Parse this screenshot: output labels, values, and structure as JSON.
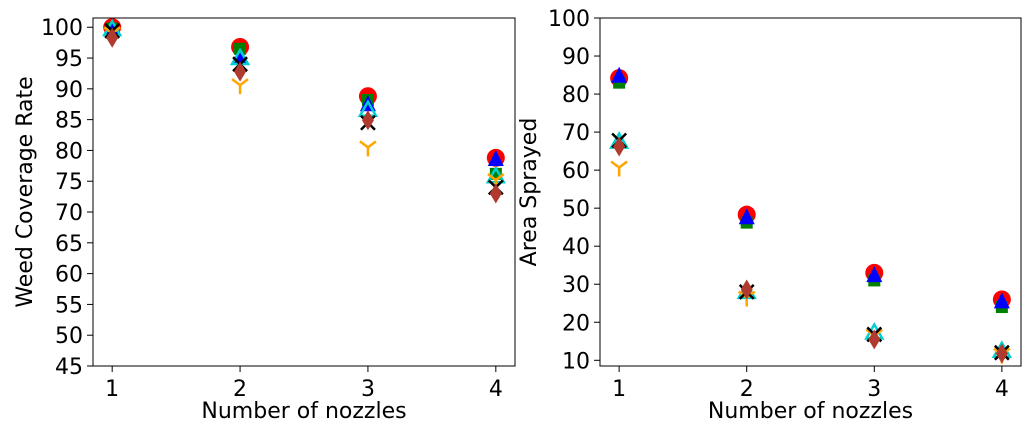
{
  "chart_data": [
    {
      "type": "scatter",
      "xlabel": "Number of nozzles",
      "ylabel": "Weed Coverage Rate",
      "x_ticks": [
        1,
        2,
        3,
        4
      ],
      "y_ticks": [
        45,
        50,
        55,
        60,
        65,
        70,
        75,
        80,
        85,
        90,
        95,
        100
      ],
      "xlim": [
        0.85,
        4.15
      ],
      "ylim": [
        45,
        101.5
      ],
      "grid": false,
      "series": [
        {
          "marker": "circle",
          "color": "#ff0000",
          "x": [
            1,
            2,
            3,
            4
          ],
          "y": [
            100,
            96.8,
            88.8,
            78.8
          ]
        },
        {
          "marker": "square",
          "color": "#008000",
          "x": [
            1,
            2,
            3,
            4
          ],
          "y": [
            99.8,
            96.5,
            88.2,
            76.2
          ]
        },
        {
          "marker": "triangle",
          "color": "#0000ff",
          "x": [
            1,
            2,
            3,
            4
          ],
          "y": [
            99.9,
            95.2,
            87.5,
            78.6
          ]
        },
        {
          "marker": "triangle-open",
          "color": "#00ced1",
          "x": [
            1,
            2,
            3,
            4
          ],
          "y": [
            99.7,
            95.0,
            86.6,
            75.8
          ]
        },
        {
          "marker": "tri-down",
          "color": "#ffa500",
          "x": [
            1,
            2,
            3,
            4
          ],
          "y": [
            99.0,
            90.6,
            80.5,
            75.2
          ]
        },
        {
          "marker": "x",
          "color": "#000000",
          "x": [
            1,
            2,
            3,
            4
          ],
          "y": [
            99.4,
            94.0,
            84.5,
            74.0
          ]
        },
        {
          "marker": "diamond",
          "color": "#b03a2e",
          "x": [
            1,
            2,
            3,
            4
          ],
          "y": [
            98.3,
            92.8,
            84.9,
            73.0
          ]
        }
      ]
    },
    {
      "type": "scatter",
      "xlabel": "Number of nozzles",
      "ylabel": "Area Sprayed",
      "x_ticks": [
        1,
        2,
        3,
        4
      ],
      "y_ticks": [
        10,
        20,
        30,
        40,
        50,
        60,
        70,
        80,
        90,
        100
      ],
      "xlim": [
        0.85,
        4.15
      ],
      "ylim": [
        8.5,
        100
      ],
      "grid": false,
      "series": [
        {
          "marker": "circle",
          "color": "#ff0000",
          "x": [
            1,
            2,
            3,
            4
          ],
          "y": [
            84.2,
            48.3,
            33.0,
            26.0
          ]
        },
        {
          "marker": "square",
          "color": "#008000",
          "x": [
            1,
            2,
            3,
            4
          ],
          "y": [
            83.0,
            46.2,
            31.0,
            24.0
          ]
        },
        {
          "marker": "triangle",
          "color": "#0000ff",
          "x": [
            1,
            2,
            3,
            4
          ],
          "y": [
            84.8,
            47.6,
            32.4,
            25.5
          ]
        },
        {
          "marker": "triangle-open",
          "color": "#00ced1",
          "x": [
            1,
            2,
            3,
            4
          ],
          "y": [
            67.5,
            28.0,
            17.3,
            12.5
          ]
        },
        {
          "marker": "tri-down",
          "color": "#ffa500",
          "x": [
            1,
            2,
            3,
            4
          ],
          "y": [
            60.7,
            26.5,
            16.5,
            11.5
          ]
        },
        {
          "marker": "x",
          "color": "#000000",
          "x": [
            1,
            2,
            3,
            4
          ],
          "y": [
            67.8,
            28.0,
            16.8,
            12.0
          ]
        },
        {
          "marker": "diamond",
          "color": "#b03a2e",
          "x": [
            1,
            2,
            3,
            4
          ],
          "y": [
            66.2,
            28.6,
            15.5,
            11.8
          ]
        }
      ]
    }
  ]
}
